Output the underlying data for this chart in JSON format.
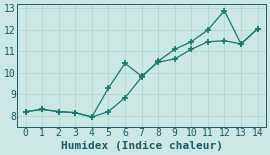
{
  "xlabel": "Humidex (Indice chaleur)",
  "xlim": [
    -0.5,
    14.5
  ],
  "ylim": [
    7.5,
    13.2
  ],
  "yticks": [
    8,
    9,
    10,
    11,
    12,
    13
  ],
  "xticks": [
    0,
    1,
    2,
    3,
    4,
    5,
    6,
    7,
    8,
    9,
    10,
    11,
    12,
    13,
    14
  ],
  "line1_x": [
    0,
    1,
    2,
    3,
    4,
    5,
    6,
    7,
    8,
    9,
    10,
    11,
    12,
    13,
    14
  ],
  "line1_y": [
    8.2,
    8.3,
    8.2,
    8.15,
    7.95,
    8.2,
    8.85,
    9.8,
    10.55,
    11.1,
    11.45,
    12.0,
    12.9,
    11.35,
    12.05
  ],
  "line2_x": [
    0,
    1,
    2,
    3,
    4,
    5,
    6,
    7,
    8,
    9,
    10,
    11,
    12,
    13,
    14
  ],
  "line2_y": [
    8.2,
    8.3,
    8.2,
    8.15,
    7.95,
    9.3,
    10.45,
    9.85,
    10.5,
    10.65,
    11.1,
    11.45,
    11.5,
    11.35,
    12.05
  ],
  "line_color": "#1a7a6a",
  "bg_color": "#cce8e4",
  "grid_color": "#b0d8d2",
  "marker": "+",
  "marker_size": 4,
  "font_color": "#1a5a6a",
  "tick_fontsize": 7,
  "xlabel_fontsize": 8,
  "linewidth": 0.9
}
